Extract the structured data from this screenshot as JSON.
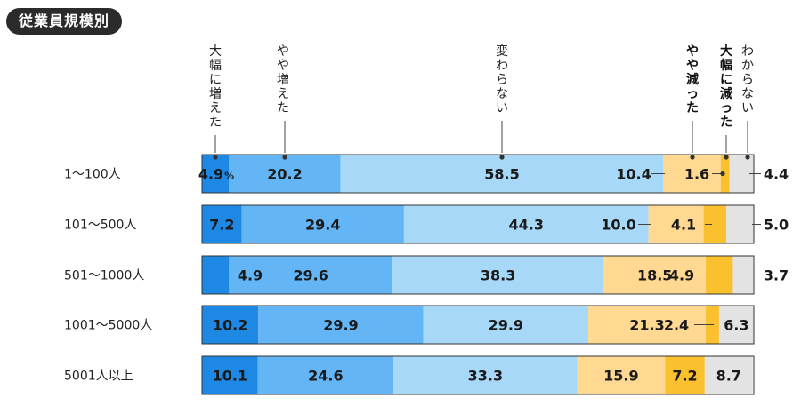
{
  "badge": "従業員規模別",
  "chart_data": {
    "type": "bar",
    "orientation": "horizontal",
    "stacked": true,
    "normalized": true,
    "unit": "%",
    "categories": [
      "1〜100人",
      "101〜500人",
      "501〜1000人",
      "1001〜5000人",
      "5001人以上"
    ],
    "series": [
      {
        "name": "大幅に増えた",
        "color": "#1e88e5",
        "values": [
          4.9,
          7.2,
          4.9,
          10.2,
          10.1
        ]
      },
      {
        "name": "やや増えた",
        "color": "#64b5f6",
        "values": [
          20.2,
          29.4,
          29.6,
          29.9,
          24.6
        ]
      },
      {
        "name": "変わらない",
        "color": "#a8d8f8",
        "values": [
          58.5,
          44.3,
          38.3,
          29.9,
          33.3
        ]
      },
      {
        "name": "やや減った",
        "color": "#ffd991",
        "values": [
          10.4,
          10.0,
          18.5,
          21.3,
          15.9
        ]
      },
      {
        "name": "大幅に減った",
        "color": "#fbc02d",
        "values": [
          1.6,
          4.1,
          4.9,
          2.4,
          7.2
        ]
      },
      {
        "name": "わからない",
        "color": "#e3e3e3",
        "values": [
          4.4,
          5.0,
          3.7,
          6.3,
          8.7
        ]
      }
    ]
  }
}
